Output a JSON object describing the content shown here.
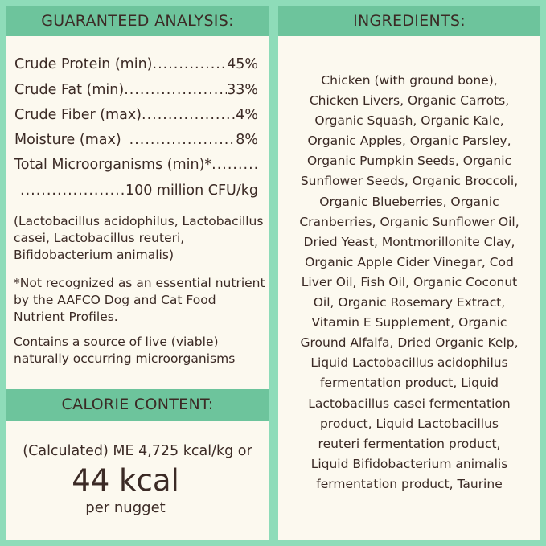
{
  "analysis": {
    "title": "GUARANTEED ANALYSIS:",
    "rows": [
      {
        "label": "Crude Protein (min)",
        "value": "45%"
      },
      {
        "label": "Crude Fat (min)",
        "value": "33%"
      },
      {
        "label": "Crude Fiber (max)",
        "value": "4%"
      },
      {
        "label": "Moisture (max)",
        "value": "8%"
      },
      {
        "label": "Total Microorganisms (min)*",
        "value": ""
      },
      {
        "label": "",
        "value": "100 million CFU/kg"
      }
    ],
    "strains": "(Lactobacillus acidophilus, Lactobacillus casei, Lactobacillus reuteri, Bifidobacterium animalis)",
    "footnote": "*Not recognized as an essential nutrient by the AAFCO Dog and Cat Food Nutrient Profiles.",
    "live_note": "Contains a source of live (viable) naturally occurring microorganisms"
  },
  "calorie": {
    "title": "CALORIE CONTENT:",
    "line1": "(Calculated) ME 4,725 kcal/kg or",
    "big": "44 kcal",
    "line3": "per nugget"
  },
  "ingredients": {
    "title": "INGREDIENTS:",
    "lines": [
      "Chicken (with ground bone),",
      "Chicken Livers, Organic Carrots,",
      "Organic Squash, Organic Kale,",
      "Organic Apples, Organic Parsley,",
      "Organic Pumpkin Seeds, Organic",
      "Sunflower Seeds, Organic Broccoli,",
      "Organic Blueberries, Organic",
      "Cranberries, Organic Sunflower Oil,",
      "Dried Yeast, Montmorillonite Clay,",
      "Organic Apple Cider Vinegar, Cod",
      "Liver Oil, Fish Oil, Organic Coconut",
      "Oil, Organic Rosemary Extract,",
      "Vitamin E Supplement, Organic",
      "Ground Alfalfa, Dried Organic Kelp,",
      "Liquid Lactobacillus acidophilus",
      "fermentation product, Liquid",
      "Lactobacillus casei fermentation",
      "product, Liquid Lactobacillus",
      "reuteri fermentation product,",
      "Liquid Bifidobacterium animalis",
      "fermentation product, Taurine"
    ]
  },
  "colors": {
    "background": "#8edcb9",
    "header": "#6dc49c",
    "panel": "#fcf9ef",
    "text": "#3b2a25"
  }
}
